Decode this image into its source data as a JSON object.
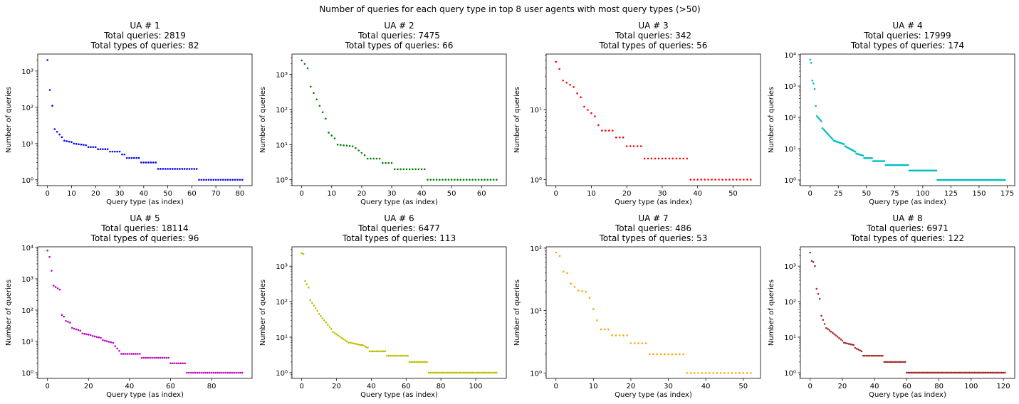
{
  "figure": {
    "suptitle": "Number of queries for each query type in top 8 user agents with most query types (>50)"
  },
  "chart_data": [
    {
      "type": "scatter",
      "title_lines": [
        "UA # 1",
        "Total queries: 2819",
        "Total types of queries: 82"
      ],
      "xlabel": "Query type (as index)",
      "ylabel": "Number of queries",
      "yscale": "log",
      "color": "#0000ff",
      "xlim": [
        -4.05,
        85.05
      ],
      "xticks": [
        0,
        10,
        20,
        30,
        40,
        50,
        60,
        70,
        80
      ],
      "yticks": [
        1,
        10,
        100,
        1000
      ],
      "ylim": [
        0.69,
        2940
      ],
      "n": 82,
      "segments": [
        {
          "start": 0,
          "end": 0,
          "from": 2000,
          "to": 2000
        },
        {
          "start": 1,
          "end": 1,
          "from": 300,
          "to": 300
        },
        {
          "start": 2,
          "end": 2,
          "from": 110,
          "to": 110
        },
        {
          "start": 3,
          "end": 6,
          "from": 25,
          "to": 15
        },
        {
          "start": 7,
          "end": 10,
          "from": 12,
          "to": 11
        },
        {
          "start": 11,
          "end": 16,
          "from": 10,
          "to": 9
        },
        {
          "start": 17,
          "end": 20,
          "from": 8,
          "to": 8
        },
        {
          "start": 21,
          "end": 25,
          "from": 7,
          "to": 7
        },
        {
          "start": 26,
          "end": 30,
          "from": 6,
          "to": 6
        },
        {
          "start": 31,
          "end": 32,
          "from": 5,
          "to": 5
        },
        {
          "start": 33,
          "end": 38,
          "from": 4,
          "to": 4
        },
        {
          "start": 39,
          "end": 45,
          "from": 3,
          "to": 3
        },
        {
          "start": 46,
          "end": 62,
          "from": 2,
          "to": 2
        },
        {
          "start": 63,
          "end": 81,
          "from": 1,
          "to": 1
        }
      ]
    },
    {
      "type": "scatter",
      "title_lines": [
        "UA # 2",
        "Total queries: 7475",
        "Total types of queries: 66"
      ],
      "xlabel": "Query type (as index)",
      "ylabel": "Number of queries",
      "yscale": "log",
      "color": "#008000",
      "xlim": [
        -3.25,
        68.25
      ],
      "xticks": [
        0,
        10,
        20,
        30,
        40,
        50,
        60
      ],
      "yticks": [
        1,
        10,
        100,
        1000
      ],
      "ylim": [
        0.68,
        3800
      ],
      "n": 66,
      "segments": [
        {
          "start": 0,
          "end": 0,
          "from": 2500,
          "to": 2500
        },
        {
          "start": 1,
          "end": 1,
          "from": 2000,
          "to": 2000
        },
        {
          "start": 2,
          "end": 2,
          "from": 1500,
          "to": 1500
        },
        {
          "start": 3,
          "end": 8,
          "from": 450,
          "to": 55
        },
        {
          "start": 9,
          "end": 11,
          "from": 22,
          "to": 15
        },
        {
          "start": 12,
          "end": 17,
          "from": 10,
          "to": 9
        },
        {
          "start": 18,
          "end": 21,
          "from": 8,
          "to": 5
        },
        {
          "start": 22,
          "end": 26,
          "from": 4,
          "to": 4
        },
        {
          "start": 27,
          "end": 30,
          "from": 3,
          "to": 3
        },
        {
          "start": 31,
          "end": 41,
          "from": 2,
          "to": 2
        },
        {
          "start": 42,
          "end": 65,
          "from": 1,
          "to": 1
        }
      ]
    },
    {
      "type": "scatter",
      "title_lines": [
        "UA # 3",
        "Total queries: 342",
        "Total types of queries: 56"
      ],
      "xlabel": "Query type (as index)",
      "ylabel": "Number of queries",
      "yscale": "log",
      "color": "#ff0000",
      "xlim": [
        -2.75,
        57.75
      ],
      "xticks": [
        0,
        10,
        20,
        30,
        40,
        50
      ],
      "yticks": [
        1,
        10
      ],
      "ylim": [
        0.82,
        62
      ],
      "n": 56,
      "segments": [
        {
          "start": 0,
          "end": 0,
          "from": 48,
          "to": 48
        },
        {
          "start": 1,
          "end": 1,
          "from": 38,
          "to": 38
        },
        {
          "start": 2,
          "end": 5,
          "from": 26,
          "to": 21
        },
        {
          "start": 6,
          "end": 7,
          "from": 17,
          "to": 15
        },
        {
          "start": 8,
          "end": 11,
          "from": 11,
          "to": 8
        },
        {
          "start": 12,
          "end": 12,
          "from": 6,
          "to": 6
        },
        {
          "start": 13,
          "end": 16,
          "from": 5,
          "to": 5
        },
        {
          "start": 17,
          "end": 19,
          "from": 4,
          "to": 4
        },
        {
          "start": 20,
          "end": 24,
          "from": 3,
          "to": 3
        },
        {
          "start": 25,
          "end": 37,
          "from": 2,
          "to": 2
        },
        {
          "start": 38,
          "end": 55,
          "from": 1,
          "to": 1
        }
      ]
    },
    {
      "type": "scatter",
      "title_lines": [
        "UA # 4",
        "Total queries: 17999",
        "Total types of queries: 174"
      ],
      "xlabel": "Query type (as index)",
      "ylabel": "Number of queries",
      "yscale": "log",
      "color": "#00bfbf",
      "xlim": [
        -8.65,
        181.65
      ],
      "xticks": [
        0,
        25,
        50,
        75,
        100,
        125,
        150,
        175
      ],
      "yticks": [
        1,
        10,
        100,
        1000,
        10000
      ],
      "ylim": [
        0.66,
        10500
      ],
      "n": 174,
      "segments": [
        {
          "start": 0,
          "end": 0,
          "from": 7000,
          "to": 7000
        },
        {
          "start": 1,
          "end": 1,
          "from": 5500,
          "to": 5500
        },
        {
          "start": 2,
          "end": 2,
          "from": 1500,
          "to": 1500
        },
        {
          "start": 3,
          "end": 3,
          "from": 1200,
          "to": 1200
        },
        {
          "start": 4,
          "end": 4,
          "from": 800,
          "to": 800
        },
        {
          "start": 5,
          "end": 5,
          "from": 230,
          "to": 230
        },
        {
          "start": 6,
          "end": 10,
          "from": 110,
          "to": 75
        },
        {
          "start": 11,
          "end": 20,
          "from": 45,
          "to": 20
        },
        {
          "start": 21,
          "end": 30,
          "from": 18,
          "to": 14
        },
        {
          "start": 31,
          "end": 40,
          "from": 12,
          "to": 8
        },
        {
          "start": 41,
          "end": 47,
          "from": 7,
          "to": 6
        },
        {
          "start": 48,
          "end": 55,
          "from": 5,
          "to": 5
        },
        {
          "start": 56,
          "end": 66,
          "from": 4,
          "to": 4
        },
        {
          "start": 67,
          "end": 87,
          "from": 3,
          "to": 3
        },
        {
          "start": 88,
          "end": 112,
          "from": 2,
          "to": 2
        },
        {
          "start": 113,
          "end": 173,
          "from": 1,
          "to": 1
        }
      ]
    },
    {
      "type": "scatter",
      "title_lines": [
        "UA # 5",
        "Total queries: 18114",
        "Total types of queries: 96"
      ],
      "xlabel": "Query type (as index)",
      "ylabel": "Number of queries",
      "yscale": "log",
      "color": "#bf00bf",
      "xlim": [
        -4.75,
        99.75
      ],
      "xticks": [
        0,
        20,
        40,
        60,
        80
      ],
      "yticks": [
        1,
        10,
        100,
        1000,
        10000
      ],
      "ylim": [
        0.66,
        10500
      ],
      "n": 96,
      "segments": [
        {
          "start": 0,
          "end": 0,
          "from": 8000,
          "to": 8000
        },
        {
          "start": 1,
          "end": 1,
          "from": 5000,
          "to": 5000
        },
        {
          "start": 2,
          "end": 2,
          "from": 1800,
          "to": 1800
        },
        {
          "start": 3,
          "end": 6,
          "from": 600,
          "to": 450
        },
        {
          "start": 7,
          "end": 8,
          "from": 70,
          "to": 62
        },
        {
          "start": 9,
          "end": 11,
          "from": 45,
          "to": 40
        },
        {
          "start": 12,
          "end": 16,
          "from": 27,
          "to": 22
        },
        {
          "start": 17,
          "end": 21,
          "from": 18,
          "to": 16
        },
        {
          "start": 22,
          "end": 26,
          "from": 15,
          "to": 13
        },
        {
          "start": 27,
          "end": 32,
          "from": 11,
          "to": 9
        },
        {
          "start": 33,
          "end": 35,
          "from": 7,
          "to": 5
        },
        {
          "start": 36,
          "end": 45,
          "from": 4,
          "to": 4
        },
        {
          "start": 46,
          "end": 59,
          "from": 3,
          "to": 3
        },
        {
          "start": 60,
          "end": 67,
          "from": 2,
          "to": 2
        },
        {
          "start": 68,
          "end": 95,
          "from": 1,
          "to": 1
        }
      ]
    },
    {
      "type": "scatter",
      "title_lines": [
        "UA # 6",
        "Total queries: 6477",
        "Total types of queries: 113"
      ],
      "xlabel": "Query type (as index)",
      "ylabel": "Number of queries",
      "yscale": "log",
      "color": "#bfbf00",
      "xlim": [
        -5.6,
        117.6
      ],
      "xticks": [
        0,
        20,
        40,
        60,
        80,
        100
      ],
      "yticks": [
        1,
        10,
        100,
        1000
      ],
      "ylim": [
        0.69,
        3500
      ],
      "n": 113,
      "segments": [
        {
          "start": 0,
          "end": 0,
          "from": 2300,
          "to": 2300
        },
        {
          "start": 1,
          "end": 1,
          "from": 2200,
          "to": 2200
        },
        {
          "start": 2,
          "end": 4,
          "from": 380,
          "to": 250
        },
        {
          "start": 5,
          "end": 9,
          "from": 110,
          "to": 55
        },
        {
          "start": 10,
          "end": 17,
          "from": 45,
          "to": 17
        },
        {
          "start": 18,
          "end": 27,
          "from": 14,
          "to": 7
        },
        {
          "start": 28,
          "end": 34,
          "from": 7,
          "to": 6
        },
        {
          "start": 35,
          "end": 38,
          "from": 6,
          "to": 5
        },
        {
          "start": 39,
          "end": 48,
          "from": 4,
          "to": 4
        },
        {
          "start": 49,
          "end": 61,
          "from": 3,
          "to": 3
        },
        {
          "start": 62,
          "end": 72,
          "from": 2,
          "to": 2
        },
        {
          "start": 73,
          "end": 112,
          "from": 1,
          "to": 1
        }
      ]
    },
    {
      "type": "scatter",
      "title_lines": [
        "UA # 7",
        "Total queries: 486",
        "Total types of queries: 53"
      ],
      "xlabel": "Query type (as index)",
      "ylabel": "Number of queries",
      "yscale": "log",
      "color": "#ffa500",
      "xlim": [
        -2.6,
        54.6
      ],
      "xticks": [
        0,
        10,
        20,
        30,
        40,
        50
      ],
      "yticks": [
        1,
        10,
        100
      ],
      "ylim": [
        0.82,
        105
      ],
      "n": 53,
      "segments": [
        {
          "start": 0,
          "end": 0,
          "from": 85,
          "to": 85
        },
        {
          "start": 1,
          "end": 1,
          "from": 75,
          "to": 75
        },
        {
          "start": 2,
          "end": 3,
          "from": 42,
          "to": 40
        },
        {
          "start": 4,
          "end": 5,
          "from": 27,
          "to": 24
        },
        {
          "start": 6,
          "end": 8,
          "from": 21,
          "to": 20
        },
        {
          "start": 9,
          "end": 11,
          "from": 16,
          "to": 7
        },
        {
          "start": 12,
          "end": 14,
          "from": 5,
          "to": 5
        },
        {
          "start": 15,
          "end": 19,
          "from": 4,
          "to": 4
        },
        {
          "start": 20,
          "end": 24,
          "from": 3,
          "to": 3
        },
        {
          "start": 25,
          "end": 34,
          "from": 2,
          "to": 2
        },
        {
          "start": 35,
          "end": 52,
          "from": 1,
          "to": 1
        }
      ]
    },
    {
      "type": "scatter",
      "title_lines": [
        "UA # 8",
        "Total queries: 6971",
        "Total types of queries: 122"
      ],
      "xlabel": "Query type (as index)",
      "ylabel": "Number of queries",
      "yscale": "log",
      "color": "#a52a2a",
      "xlim": [
        -6.05,
        127.05
      ],
      "xticks": [
        0,
        20,
        40,
        60,
        80,
        100,
        120
      ],
      "yticks": [
        1,
        10,
        100,
        1000
      ],
      "ylim": [
        0.69,
        3500
      ],
      "n": 122,
      "segments": [
        {
          "start": 0,
          "end": 0,
          "from": 2400,
          "to": 2400
        },
        {
          "start": 1,
          "end": 1,
          "from": 1400,
          "to": 1400
        },
        {
          "start": 2,
          "end": 2,
          "from": 1300,
          "to": 1300
        },
        {
          "start": 3,
          "end": 3,
          "from": 1000,
          "to": 1000
        },
        {
          "start": 4,
          "end": 6,
          "from": 230,
          "to": 120
        },
        {
          "start": 7,
          "end": 10,
          "from": 40,
          "to": 18
        },
        {
          "start": 11,
          "end": 20,
          "from": 17,
          "to": 8
        },
        {
          "start": 21,
          "end": 27,
          "from": 7,
          "to": 6
        },
        {
          "start": 28,
          "end": 32,
          "from": 5,
          "to": 4
        },
        {
          "start": 33,
          "end": 45,
          "from": 3,
          "to": 3
        },
        {
          "start": 46,
          "end": 59,
          "from": 2,
          "to": 2
        },
        {
          "start": 60,
          "end": 121,
          "from": 1,
          "to": 1
        }
      ]
    }
  ]
}
